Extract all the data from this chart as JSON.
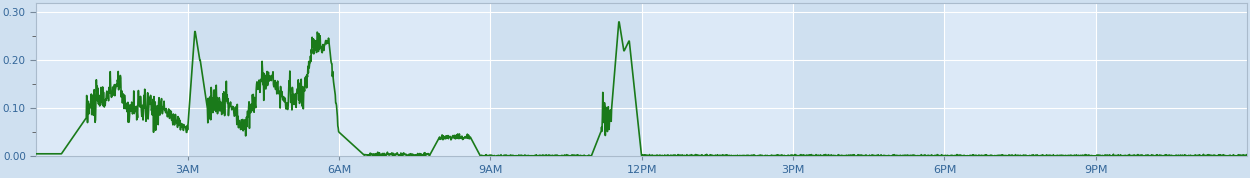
{
  "line_color": "#1a7a1a",
  "line_width": 1.2,
  "bg_color": "#cfe0f0",
  "plot_bg_color": "#dce9f7",
  "grid_color": "#ffffff",
  "tick_label_color": "#336699",
  "ylim": [
    0.0,
    0.32
  ],
  "yticks": [
    0.0,
    0.1,
    0.2,
    0.3
  ],
  "ytick_labels": [
    "0.00",
    "0.10",
    "0.20",
    "0.30"
  ],
  "xtick_labels": [
    "3AM",
    "6AM",
    "9AM",
    "12PM",
    "3PM",
    "6PM",
    "9PM"
  ],
  "xtick_positions": [
    3,
    6,
    9,
    12,
    15,
    18,
    21
  ],
  "xlim": [
    0,
    24
  ],
  "minor_ytick_color": "#555555",
  "spine_color": "#aabbcc"
}
